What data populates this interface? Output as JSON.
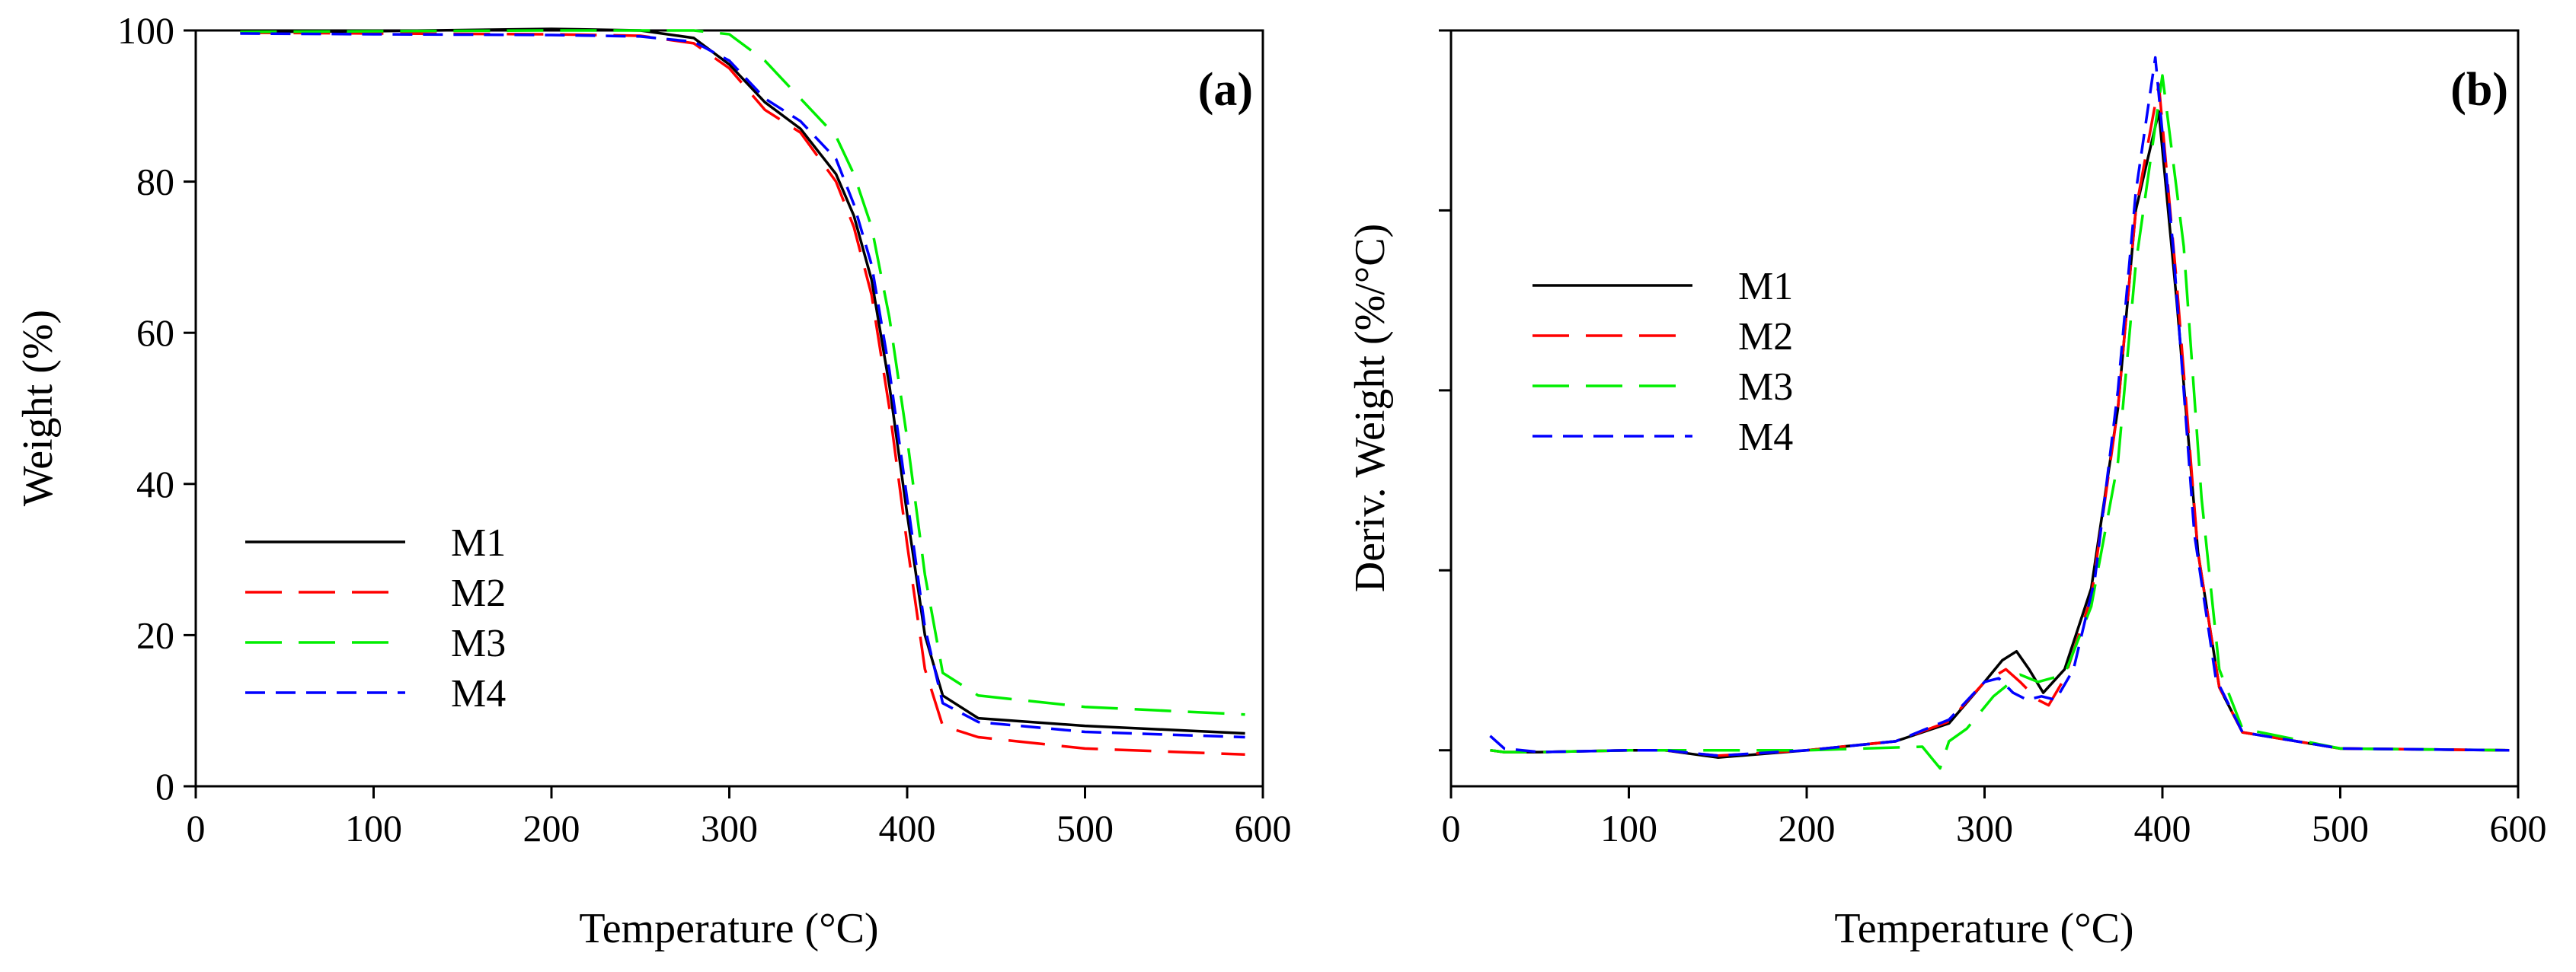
{
  "chart_data": [
    {
      "type": "line",
      "panel_label": "(a)",
      "xlabel": "Temperature (°C)",
      "ylabel": "Weight (%)",
      "xlim": [
        0,
        600
      ],
      "ylim": [
        0,
        100
      ],
      "x_ticks": [
        "0",
        "100",
        "200",
        "300",
        "400",
        "500",
        "600"
      ],
      "y_ticks": [
        "0",
        "20",
        "40",
        "60",
        "80",
        "100"
      ],
      "legend_position": "lower-left",
      "grid": false,
      "series": [
        {
          "name": "M1",
          "color": "#000000",
          "dash": "solid",
          "x": [
            25,
            100,
            200,
            250,
            280,
            300,
            320,
            340,
            360,
            370,
            380,
            390,
            400,
            410,
            420,
            440,
            500,
            590
          ],
          "y": [
            99.8,
            99.9,
            100.2,
            100.0,
            99.0,
            95.5,
            90.5,
            87.0,
            81.0,
            75.5,
            67.0,
            53.0,
            36.0,
            20.0,
            12.0,
            9.0,
            8.0,
            7.0
          ]
        },
        {
          "name": "M2",
          "color": "#ff0000",
          "dash": "long",
          "x": [
            25,
            100,
            200,
            250,
            280,
            300,
            320,
            340,
            360,
            370,
            380,
            390,
            400,
            410,
            420,
            440,
            500,
            590
          ],
          "y": [
            99.7,
            99.6,
            99.5,
            99.3,
            98.3,
            95.0,
            89.5,
            86.5,
            80.0,
            74.0,
            65.0,
            50.0,
            32.0,
            15.5,
            8.0,
            6.5,
            5.0,
            4.2
          ]
        },
        {
          "name": "M3",
          "color": "#00ee00",
          "dash": "long",
          "x": [
            25,
            100,
            200,
            250,
            280,
            300,
            320,
            340,
            360,
            370,
            380,
            390,
            400,
            410,
            420,
            440,
            500,
            590
          ],
          "y": [
            99.8,
            99.9,
            100.0,
            100.0,
            100.0,
            99.5,
            96.0,
            91.0,
            86.0,
            81.0,
            74.0,
            62.0,
            46.0,
            28.0,
            15.0,
            12.0,
            10.5,
            9.5
          ]
        },
        {
          "name": "M4",
          "color": "#0000ff",
          "dash": "short",
          "x": [
            25,
            100,
            200,
            250,
            280,
            300,
            320,
            340,
            360,
            370,
            380,
            390,
            400,
            410,
            420,
            440,
            500,
            590
          ],
          "y": [
            99.6,
            99.5,
            99.4,
            99.2,
            98.5,
            96.0,
            91.0,
            88.0,
            83.0,
            77.0,
            69.0,
            55.0,
            38.0,
            21.0,
            11.0,
            8.5,
            7.2,
            6.5
          ]
        }
      ]
    },
    {
      "type": "line",
      "panel_label": "(b)",
      "xlabel": "Temperature (°C)",
      "ylabel": "Deriv. Weight (%/°C)",
      "xlim": [
        0,
        600
      ],
      "ylim": [
        -0.2,
        4.0
      ],
      "x_ticks": [
        "0",
        "100",
        "200",
        "300",
        "400",
        "500",
        "600"
      ],
      "y_ticks_unlabeled": [
        0,
        1,
        2,
        3,
        4
      ],
      "legend_position": "upper-left",
      "grid": false,
      "series": [
        {
          "name": "M1",
          "color": "#000000",
          "dash": "solid",
          "x": [
            22,
            30,
            50,
            100,
            120,
            150,
            200,
            250,
            280,
            300,
            310,
            318,
            325,
            333,
            345,
            360,
            375,
            385,
            398,
            408,
            420,
            432,
            445,
            500,
            595
          ],
          "y": [
            0.0,
            -0.01,
            -0.01,
            0.0,
            0.0,
            -0.04,
            0.0,
            0.05,
            0.15,
            0.38,
            0.5,
            0.55,
            0.45,
            0.32,
            0.45,
            0.9,
            1.9,
            3.0,
            3.55,
            2.5,
            1.1,
            0.35,
            0.1,
            0.01,
            0.0
          ]
        },
        {
          "name": "M2",
          "color": "#ff0000",
          "dash": "long",
          "x": [
            22,
            30,
            50,
            100,
            120,
            150,
            200,
            250,
            280,
            300,
            312,
            320,
            330,
            336,
            345,
            360,
            375,
            385,
            398,
            408,
            420,
            432,
            445,
            500,
            595
          ],
          "y": [
            0.0,
            -0.01,
            -0.01,
            0.0,
            0.0,
            -0.03,
            0.0,
            0.05,
            0.16,
            0.38,
            0.45,
            0.38,
            0.28,
            0.25,
            0.4,
            0.85,
            1.9,
            3.0,
            3.7,
            2.6,
            1.1,
            0.35,
            0.1,
            0.01,
            0.0
          ]
        },
        {
          "name": "M3",
          "color": "#00ee00",
          "dash": "long",
          "x": [
            22,
            30,
            50,
            100,
            200,
            265,
            275,
            280,
            290,
            305,
            320,
            330,
            345,
            360,
            375,
            385,
            400,
            412,
            422,
            432,
            445,
            500,
            595
          ],
          "y": [
            0.0,
            -0.01,
            -0.01,
            0.0,
            0.0,
            0.02,
            -0.1,
            0.05,
            0.12,
            0.3,
            0.42,
            0.38,
            0.42,
            0.8,
            1.6,
            2.7,
            3.75,
            2.8,
            1.4,
            0.45,
            0.12,
            0.01,
            0.0
          ]
        },
        {
          "name": "M4",
          "color": "#0000ff",
          "dash": "short",
          "x": [
            22,
            30,
            50,
            100,
            120,
            150,
            200,
            250,
            280,
            300,
            308,
            316,
            324,
            332,
            340,
            350,
            362,
            375,
            385,
            396,
            406,
            418,
            430,
            445,
            500,
            595
          ],
          "y": [
            0.08,
            0.01,
            -0.01,
            0.0,
            0.0,
            -0.03,
            0.0,
            0.05,
            0.17,
            0.38,
            0.4,
            0.32,
            0.28,
            0.3,
            0.28,
            0.45,
            0.95,
            2.0,
            3.1,
            3.85,
            2.8,
            1.2,
            0.4,
            0.1,
            0.01,
            0.0
          ]
        }
      ]
    }
  ]
}
